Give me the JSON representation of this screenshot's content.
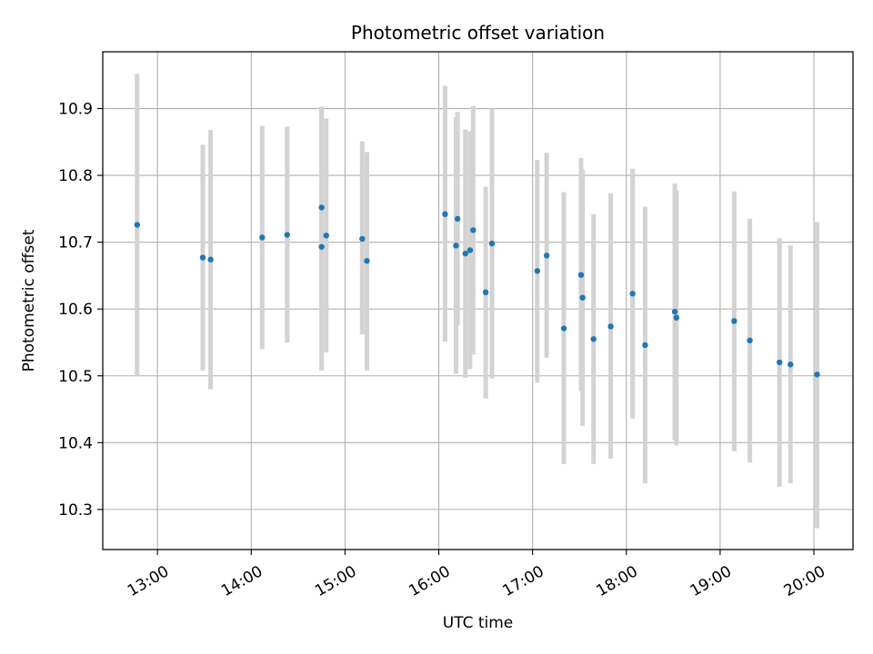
{
  "chart_data": {
    "type": "scatter",
    "title": "Photometric offset variation",
    "xlabel": "UTC time",
    "ylabel": "Photometric offset",
    "x_tick_labels": [
      "13:00",
      "14:00",
      "15:00",
      "16:00",
      "17:00",
      "18:00",
      "19:00",
      "20:00"
    ],
    "y_tick_labels": [
      "10.3",
      "10.4",
      "10.5",
      "10.6",
      "10.7",
      "10.8",
      "10.9"
    ],
    "xlim": [
      "12:25",
      "20:25"
    ],
    "ylim": [
      10.24,
      10.985
    ],
    "grid": true,
    "colors": {
      "point": "#1f77b4",
      "errorbar": "#d3d3d3",
      "grid": "#b0b0b0"
    },
    "points": [
      {
        "x": "12:47",
        "y": 10.726,
        "ylow": 10.5,
        "yhigh": 10.952
      },
      {
        "x": "13:29",
        "y": 10.677,
        "ylow": 10.508,
        "yhigh": 10.846
      },
      {
        "x": "13:34",
        "y": 10.674,
        "ylow": 10.48,
        "yhigh": 10.868
      },
      {
        "x": "14:07",
        "y": 10.707,
        "ylow": 10.54,
        "yhigh": 10.874
      },
      {
        "x": "14:23",
        "y": 10.711,
        "ylow": 10.55,
        "yhigh": 10.873
      },
      {
        "x": "14:45",
        "y": 10.693,
        "ylow": 10.508,
        "yhigh": 10.903
      },
      {
        "x": "14:45",
        "y": 10.752,
        "ylow": 10.6,
        "yhigh": 10.9
      },
      {
        "x": "14:48",
        "y": 10.71,
        "ylow": 10.535,
        "yhigh": 10.885
      },
      {
        "x": "15:11",
        "y": 10.705,
        "ylow": 10.562,
        "yhigh": 10.851
      },
      {
        "x": "15:14",
        "y": 10.672,
        "ylow": 10.508,
        "yhigh": 10.835
      },
      {
        "x": "16:04",
        "y": 10.742,
        "ylow": 10.551,
        "yhigh": 10.934
      },
      {
        "x": "16:11",
        "y": 10.695,
        "ylow": 10.503,
        "yhigh": 10.887
      },
      {
        "x": "16:12",
        "y": 10.735,
        "ylow": 10.575,
        "yhigh": 10.895
      },
      {
        "x": "16:17",
        "y": 10.683,
        "ylow": 10.497,
        "yhigh": 10.869
      },
      {
        "x": "16:20",
        "y": 10.688,
        "ylow": 10.51,
        "yhigh": 10.866
      },
      {
        "x": "16:22",
        "y": 10.718,
        "ylow": 10.532,
        "yhigh": 10.904
      },
      {
        "x": "16:30",
        "y": 10.625,
        "ylow": 10.466,
        "yhigh": 10.783
      },
      {
        "x": "16:34",
        "y": 10.698,
        "ylow": 10.496,
        "yhigh": 10.9
      },
      {
        "x": "17:03",
        "y": 10.657,
        "ylow": 10.49,
        "yhigh": 10.823
      },
      {
        "x": "17:09",
        "y": 10.68,
        "ylow": 10.527,
        "yhigh": 10.834
      },
      {
        "x": "17:20",
        "y": 10.571,
        "ylow": 10.368,
        "yhigh": 10.775
      },
      {
        "x": "17:31",
        "y": 10.651,
        "ylow": 10.477,
        "yhigh": 10.826
      },
      {
        "x": "17:32",
        "y": 10.617,
        "ylow": 10.425,
        "yhigh": 10.809
      },
      {
        "x": "17:39",
        "y": 10.555,
        "ylow": 10.368,
        "yhigh": 10.742
      },
      {
        "x": "17:50",
        "y": 10.574,
        "ylow": 10.376,
        "yhigh": 10.773
      },
      {
        "x": "18:04",
        "y": 10.623,
        "ylow": 10.436,
        "yhigh": 10.81
      },
      {
        "x": "18:12",
        "y": 10.546,
        "ylow": 10.339,
        "yhigh": 10.753
      },
      {
        "x": "18:31",
        "y": 10.596,
        "ylow": 10.404,
        "yhigh": 10.788
      },
      {
        "x": "18:32",
        "y": 10.587,
        "ylow": 10.396,
        "yhigh": 10.778
      },
      {
        "x": "19:09",
        "y": 10.582,
        "ylow": 10.387,
        "yhigh": 10.776
      },
      {
        "x": "19:19",
        "y": 10.553,
        "ylow": 10.37,
        "yhigh": 10.735
      },
      {
        "x": "19:38",
        "y": 10.52,
        "ylow": 10.334,
        "yhigh": 10.706
      },
      {
        "x": "19:45",
        "y": 10.517,
        "ylow": 10.339,
        "yhigh": 10.695
      },
      {
        "x": "20:02",
        "y": 10.502,
        "ylow": 10.272,
        "yhigh": 10.73
      }
    ]
  }
}
